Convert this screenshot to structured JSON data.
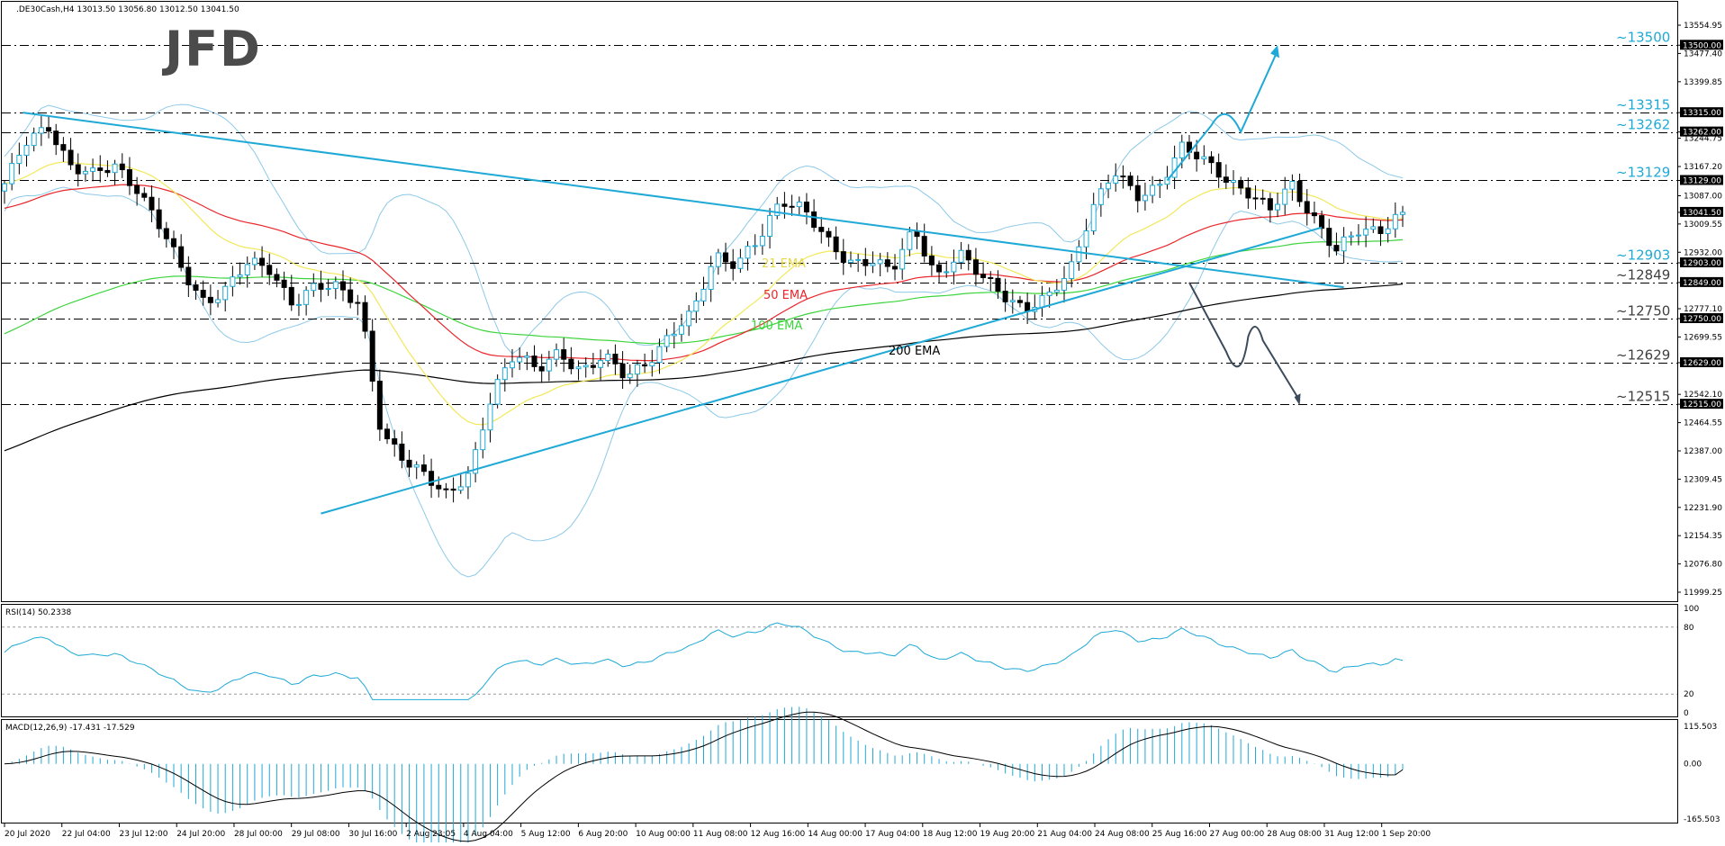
{
  "header": {
    "symbol_info": ".DE30Cash,H4  13013.50 13056.80 13012.50 13041.50"
  },
  "logo_text": "JFD",
  "rsi_header": "RSI(14) 50.2338",
  "macd_header": "MACD(12,26,9) -17.431 -17.529",
  "price_axis": [
    "13554.95",
    "13500.00",
    "13477.40",
    "13399.85",
    "13315.00",
    "13262.00",
    "13244.75",
    "13167.20",
    "13129.00",
    "13087.00",
    "13041.50",
    "13009.55",
    "12932.00",
    "12903.00",
    "12849.00",
    "12777.10",
    "12750.00",
    "12699.55",
    "12629.00",
    "12542.10",
    "12515.00",
    "12464.55",
    "12387.00",
    "12309.45",
    "12231.90",
    "12154.35",
    "12076.80",
    "11999.25"
  ],
  "rsi_axis": [
    "100",
    "80",
    "20",
    "0"
  ],
  "macd_axis": [
    "115.503",
    "0.00",
    "-165.503"
  ],
  "time_axis": [
    "20 Jul 2020",
    "22 Jul 04:00",
    "23 Jul 12:00",
    "24 Jul 20:00",
    "28 Jul 00:00",
    "29 Jul 08:00",
    "30 Jul 16:00",
    "2 Aug 23:05",
    "4 Aug 04:00",
    "5 Aug 12:00",
    "6 Aug 20:00",
    "10 Aug 00:00",
    "11 Aug 08:00",
    "12 Aug 16:00",
    "14 Aug 00:00",
    "17 Aug 04:00",
    "18 Aug 12:00",
    "19 Aug 20:00",
    "21 Aug 04:00",
    "24 Aug 08:00",
    "25 Aug 16:00",
    "27 Aug 00:00",
    "28 Aug 08:00",
    "31 Aug 12:00",
    "1 Sep 20:00"
  ],
  "levels": [
    {
      "value": 13500,
      "label": "~13500",
      "box": "13500.00"
    },
    {
      "value": 13315,
      "label": "~13315",
      "box": "13315.00"
    },
    {
      "value": 13262,
      "label": "~13262",
      "box": "13262.00"
    },
    {
      "value": 13129,
      "label": "~13129",
      "box": "13129.00"
    },
    {
      "value": 12903,
      "label": "~12903",
      "box": "12903.00"
    },
    {
      "value": 12849,
      "label": "~12849",
      "box": "12849.00"
    },
    {
      "value": 12750,
      "label": "~12750",
      "box": "12750.00"
    },
    {
      "value": 12629,
      "label": "~12629",
      "box": "12629.00"
    },
    {
      "value": 12515,
      "label": "~12515",
      "box": "12515.00"
    }
  ],
  "current_price_box": "13041.50",
  "ema_labels": {
    "ema21": "21 EMA",
    "ema50": "50 EMA",
    "ema100": "100 EMA",
    "ema200": "200 EMA"
  },
  "colors": {
    "ema21": "#f2e85a",
    "ema50": "#e8262b",
    "ema100": "#3cd43c",
    "ema200": "#000000",
    "bollinger": "#8ec9e8",
    "trend": "#1fa9d6",
    "bull": "#1fa9d6",
    "bear": "#000000",
    "rsi": "#1fa9d6",
    "macd_hist": "#1fa9d6",
    "macd_signal": "#000000",
    "level_label": "#1fa9d6",
    "level_label_below": "#404040"
  },
  "chart_data": {
    "type": "candlestick",
    "instrument": ".DE30Cash",
    "timeframe": "H4",
    "ohlc_last": {
      "open": 13013.5,
      "high": 13056.8,
      "low": 13012.5,
      "close": 13041.5
    },
    "ylim": [
      11999.25,
      13554.95
    ],
    "x_start": "20 Jul 2020",
    "x_end": "1 Sep 20:00",
    "close_path": [
      {
        "t": "20 Jul 2020",
        "v": 13120
      },
      {
        "t": "20 Jul 12:00",
        "v": 13230
      },
      {
        "t": "21 Jul 00:00",
        "v": 13280
      },
      {
        "t": "21 Jul 12:00",
        "v": 13170
      },
      {
        "t": "22 Jul 04:00",
        "v": 13140
      },
      {
        "t": "22 Jul 16:00",
        "v": 13170
      },
      {
        "t": "23 Jul 04:00",
        "v": 13110
      },
      {
        "t": "23 Jul 12:00",
        "v": 13000
      },
      {
        "t": "24 Jul 00:00",
        "v": 12880
      },
      {
        "t": "24 Jul 12:00",
        "v": 12800
      },
      {
        "t": "24 Jul 20:00",
        "v": 12830
      },
      {
        "t": "27 Jul 08:00",
        "v": 12900
      },
      {
        "t": "28 Jul 00:00",
        "v": 12890
      },
      {
        "t": "28 Jul 12:00",
        "v": 12790
      },
      {
        "t": "29 Jul 00:00",
        "v": 12830
      },
      {
        "t": "29 Jul 08:00",
        "v": 12840
      },
      {
        "t": "29 Jul 20:00",
        "v": 12800
      },
      {
        "t": "30 Jul 04:00",
        "v": 12420
      },
      {
        "t": "30 Jul 16:00",
        "v": 12360
      },
      {
        "t": "31 Jul 08:00",
        "v": 12330
      },
      {
        "t": "31 Jul 20:00",
        "v": 12260
      },
      {
        "t": "2 Aug 23:05",
        "v": 12320
      },
      {
        "t": "3 Aug 12:00",
        "v": 12560
      },
      {
        "t": "4 Aug 04:00",
        "v": 12660
      },
      {
        "t": "4 Aug 16:00",
        "v": 12600
      },
      {
        "t": "5 Aug 04:00",
        "v": 12660
      },
      {
        "t": "5 Aug 12:00",
        "v": 12610
      },
      {
        "t": "6 Aug 04:00",
        "v": 12640
      },
      {
        "t": "6 Aug 20:00",
        "v": 12590
      },
      {
        "t": "7 Aug 12:00",
        "v": 12640
      },
      {
        "t": "10 Aug 00:00",
        "v": 12700
      },
      {
        "t": "10 Aug 16:00",
        "v": 12760
      },
      {
        "t": "11 Aug 08:00",
        "v": 12930
      },
      {
        "t": "11 Aug 20:00",
        "v": 12900
      },
      {
        "t": "12 Aug 08:00",
        "v": 12960
      },
      {
        "t": "12 Aug 16:00",
        "v": 13080
      },
      {
        "t": "13 Aug 08:00",
        "v": 13060
      },
      {
        "t": "14 Aug 00:00",
        "v": 12960
      },
      {
        "t": "14 Aug 12:00",
        "v": 12900
      },
      {
        "t": "17 Aug 04:00",
        "v": 12920
      },
      {
        "t": "17 Aug 16:00",
        "v": 12880
      },
      {
        "t": "18 Aug 04:00",
        "v": 12990
      },
      {
        "t": "18 Aug 12:00",
        "v": 12870
      },
      {
        "t": "19 Aug 04:00",
        "v": 12930
      },
      {
        "t": "19 Aug 20:00",
        "v": 12860
      },
      {
        "t": "20 Aug 12:00",
        "v": 12820
      },
      {
        "t": "21 Aug 04:00",
        "v": 12780
      },
      {
        "t": "21 Aug 16:00",
        "v": 12800
      },
      {
        "t": "24 Aug 00:00",
        "v": 12880
      },
      {
        "t": "24 Aug 08:00",
        "v": 13060
      },
      {
        "t": "24 Aug 20:00",
        "v": 13150
      },
      {
        "t": "25 Aug 08:00",
        "v": 13080
      },
      {
        "t": "25 Aug 16:00",
        "v": 13120
      },
      {
        "t": "26 Aug 08:00",
        "v": 13220
      },
      {
        "t": "26 Aug 20:00",
        "v": 13180
      },
      {
        "t": "27 Aug 00:00",
        "v": 13140
      },
      {
        "t": "27 Aug 16:00",
        "v": 13100
      },
      {
        "t": "28 Aug 08:00",
        "v": 13040
      },
      {
        "t": "28 Aug 20:00",
        "v": 13120
      },
      {
        "t": "31 Aug 08:00",
        "v": 13030
      },
      {
        "t": "31 Aug 12:00",
        "v": 12930
      },
      {
        "t": "31 Aug 20:00",
        "v": 12990
      },
      {
        "t": "1 Sep 08:00",
        "v": 13000
      },
      {
        "t": "1 Sep 20:00",
        "v": 13041.5
      }
    ],
    "indicators": {
      "rsi": {
        "period": 14,
        "last": 50.2338,
        "levels": [
          80,
          20
        ],
        "ylim": [
          0,
          100
        ]
      },
      "macd": {
        "params": [
          12,
          26,
          9
        ],
        "main": -17.431,
        "signal": -17.529,
        "ylim": [
          -165.503,
          115.503
        ]
      }
    }
  }
}
